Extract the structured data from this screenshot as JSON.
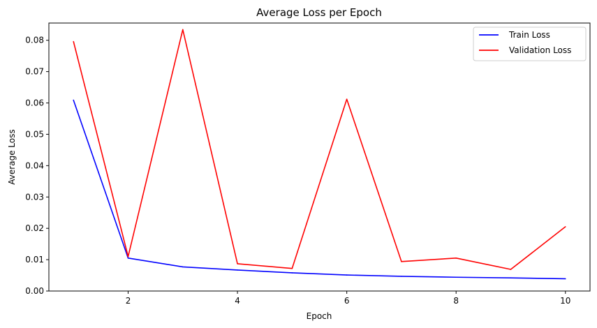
{
  "chart_data": {
    "type": "line",
    "title": "Average Loss per Epoch",
    "xlabel": "Epoch",
    "ylabel": "Average Loss",
    "x": [
      1,
      2,
      3,
      4,
      5,
      6,
      7,
      8,
      9,
      10
    ],
    "xlim": [
      0.55,
      10.45
    ],
    "ylim": [
      0,
      0.0855
    ],
    "xticks": [
      2,
      4,
      6,
      8,
      10
    ],
    "yticks": [
      0.0,
      0.01,
      0.02,
      0.03,
      0.04,
      0.05,
      0.06,
      0.07,
      0.08
    ],
    "xtick_labels": [
      "2",
      "4",
      "6",
      "8",
      "10"
    ],
    "ytick_labels": [
      "0.00",
      "0.01",
      "0.02",
      "0.03",
      "0.04",
      "0.05",
      "0.06",
      "0.07",
      "0.08"
    ],
    "grid": false,
    "legend_position": "top-right",
    "series": [
      {
        "name": "Train Loss",
        "color": "#0000ff",
        "values": [
          0.0609,
          0.0105,
          0.0077,
          0.0067,
          0.0058,
          0.0051,
          0.0047,
          0.0044,
          0.0042,
          0.0039
        ]
      },
      {
        "name": "Validation Loss",
        "color": "#ff0000",
        "values": [
          0.0796,
          0.011,
          0.0834,
          0.0087,
          0.0072,
          0.0612,
          0.0094,
          0.0105,
          0.0069,
          0.0205
        ]
      }
    ]
  }
}
